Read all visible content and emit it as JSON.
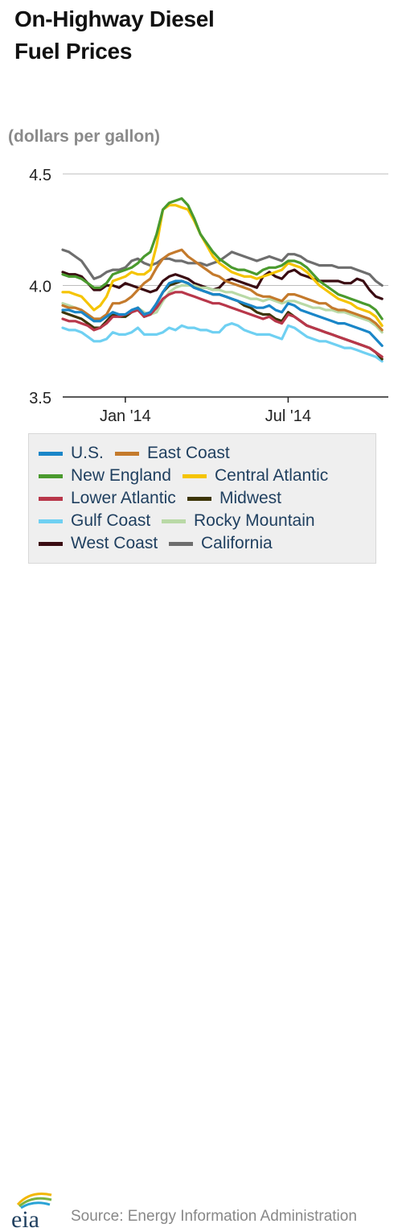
{
  "title_line1": "On-Highway Diesel",
  "title_line2": "Fuel Prices",
  "units": "(dollars per gallon)",
  "source": "Source: Energy Information Administration",
  "logo_text": "eia",
  "chart_data": {
    "type": "line",
    "title": "On-Highway Diesel Fuel Prices",
    "ylabel": "(dollars per gallon)",
    "ylim": [
      3.5,
      4.5
    ],
    "yticks": [
      "3.5",
      "4.0",
      "4.5"
    ],
    "xticks": [
      {
        "label": "Jan '14",
        "week": 10
      },
      {
        "label": "Jul '14",
        "week": 36
      }
    ],
    "grid": "horizontal",
    "legend_placement": "bottom",
    "x_weeks": [
      0,
      1,
      2,
      3,
      4,
      5,
      6,
      7,
      8,
      9,
      10,
      11,
      12,
      13,
      14,
      15,
      16,
      17,
      18,
      19,
      20,
      21,
      22,
      23,
      24,
      25,
      26,
      27,
      28,
      29,
      30,
      31,
      32,
      33,
      34,
      35,
      36,
      37,
      38,
      39,
      40,
      41,
      42,
      43,
      44,
      45,
      46,
      47,
      48,
      49,
      50,
      51
    ],
    "series": [
      {
        "name": "U.S.",
        "color": "#1a86c8",
        "values": [
          3.89,
          3.89,
          3.88,
          3.88,
          3.86,
          3.84,
          3.84,
          3.86,
          3.88,
          3.87,
          3.87,
          3.89,
          3.9,
          3.87,
          3.88,
          3.92,
          3.97,
          4.01,
          4.02,
          4.02,
          4.01,
          3.99,
          3.98,
          3.97,
          3.96,
          3.96,
          3.95,
          3.94,
          3.93,
          3.92,
          3.91,
          3.9,
          3.9,
          3.91,
          3.89,
          3.88,
          3.92,
          3.91,
          3.89,
          3.88,
          3.87,
          3.86,
          3.85,
          3.84,
          3.83,
          3.83,
          3.82,
          3.81,
          3.8,
          3.79,
          3.76,
          3.73
        ]
      },
      {
        "name": "East Coast",
        "color": "#c47a2c",
        "values": [
          3.91,
          3.9,
          3.9,
          3.89,
          3.87,
          3.85,
          3.85,
          3.87,
          3.92,
          3.92,
          3.93,
          3.95,
          3.98,
          4.01,
          4.03,
          4.08,
          4.12,
          4.14,
          4.15,
          4.16,
          4.13,
          4.11,
          4.09,
          4.07,
          4.05,
          4.04,
          4.02,
          4.01,
          4.0,
          3.99,
          3.98,
          3.96,
          3.95,
          3.95,
          3.94,
          3.93,
          3.96,
          3.96,
          3.95,
          3.94,
          3.93,
          3.92,
          3.92,
          3.9,
          3.89,
          3.89,
          3.88,
          3.87,
          3.86,
          3.85,
          3.83,
          3.8
        ]
      },
      {
        "name": "New England",
        "color": "#4a9a2e",
        "values": [
          4.05,
          4.04,
          4.04,
          4.03,
          4.01,
          3.99,
          3.99,
          4.01,
          4.05,
          4.06,
          4.07,
          4.08,
          4.1,
          4.13,
          4.15,
          4.23,
          4.34,
          4.37,
          4.38,
          4.39,
          4.36,
          4.3,
          4.23,
          4.19,
          4.15,
          4.12,
          4.1,
          4.08,
          4.07,
          4.07,
          4.06,
          4.05,
          4.07,
          4.08,
          4.08,
          4.09,
          4.11,
          4.11,
          4.1,
          4.08,
          4.05,
          4.02,
          4.0,
          3.98,
          3.96,
          3.95,
          3.94,
          3.93,
          3.92,
          3.91,
          3.89,
          3.85
        ]
      },
      {
        "name": "Central Atlantic",
        "color": "#f5c400",
        "values": [
          3.97,
          3.97,
          3.96,
          3.95,
          3.92,
          3.89,
          3.91,
          3.95,
          4.02,
          4.03,
          4.04,
          4.06,
          4.05,
          4.05,
          4.07,
          4.18,
          4.34,
          4.36,
          4.36,
          4.35,
          4.34,
          4.29,
          4.23,
          4.18,
          4.13,
          4.1,
          4.08,
          4.06,
          4.05,
          4.04,
          4.04,
          4.03,
          4.04,
          4.05,
          4.06,
          4.07,
          4.1,
          4.09,
          4.08,
          4.06,
          4.03,
          4.0,
          3.98,
          3.96,
          3.94,
          3.93,
          3.92,
          3.9,
          3.89,
          3.88,
          3.86,
          3.82
        ]
      },
      {
        "name": "Lower Atlantic",
        "color": "#b8374a",
        "values": [
          3.85,
          3.84,
          3.84,
          3.83,
          3.82,
          3.8,
          3.81,
          3.83,
          3.86,
          3.86,
          3.87,
          3.88,
          3.89,
          3.86,
          3.87,
          3.9,
          3.94,
          3.96,
          3.97,
          3.97,
          3.96,
          3.95,
          3.94,
          3.93,
          3.92,
          3.92,
          3.91,
          3.9,
          3.89,
          3.88,
          3.87,
          3.86,
          3.85,
          3.86,
          3.84,
          3.83,
          3.87,
          3.86,
          3.84,
          3.82,
          3.81,
          3.8,
          3.79,
          3.78,
          3.77,
          3.76,
          3.75,
          3.74,
          3.73,
          3.72,
          3.7,
          3.68
        ]
      },
      {
        "name": "Midwest",
        "color": "#3d3508",
        "values": [
          3.88,
          3.87,
          3.86,
          3.85,
          3.83,
          3.81,
          3.81,
          3.84,
          3.87,
          3.86,
          3.86,
          3.88,
          3.9,
          3.86,
          3.87,
          3.92,
          3.97,
          4.0,
          4.01,
          4.02,
          4.01,
          3.99,
          3.98,
          3.97,
          3.96,
          3.96,
          3.95,
          3.94,
          3.93,
          3.91,
          3.9,
          3.88,
          3.87,
          3.87,
          3.85,
          3.84,
          3.88,
          3.86,
          3.84,
          3.82,
          3.81,
          3.8,
          3.79,
          3.78,
          3.77,
          3.76,
          3.75,
          3.74,
          3.73,
          3.72,
          3.7,
          3.67
        ]
      },
      {
        "name": "Gulf Coast",
        "color": "#6fd0f2",
        "values": [
          3.81,
          3.8,
          3.8,
          3.79,
          3.77,
          3.75,
          3.75,
          3.76,
          3.79,
          3.78,
          3.78,
          3.79,
          3.81,
          3.78,
          3.78,
          3.78,
          3.79,
          3.81,
          3.8,
          3.82,
          3.81,
          3.81,
          3.8,
          3.8,
          3.79,
          3.79,
          3.82,
          3.83,
          3.82,
          3.8,
          3.79,
          3.78,
          3.78,
          3.78,
          3.77,
          3.76,
          3.82,
          3.81,
          3.79,
          3.77,
          3.76,
          3.75,
          3.75,
          3.74,
          3.73,
          3.72,
          3.72,
          3.71,
          3.7,
          3.69,
          3.68,
          3.66
        ]
      },
      {
        "name": "Rocky Mountain",
        "color": "#b9d9a6",
        "values": [
          3.92,
          3.91,
          3.9,
          3.89,
          3.87,
          3.85,
          3.85,
          3.86,
          3.88,
          3.87,
          3.86,
          3.88,
          3.9,
          3.88,
          3.87,
          3.88,
          3.93,
          3.97,
          3.99,
          4.0,
          4.0,
          4.0,
          3.99,
          3.99,
          3.98,
          3.98,
          3.97,
          3.97,
          3.96,
          3.95,
          3.94,
          3.94,
          3.93,
          3.94,
          3.93,
          3.92,
          3.93,
          3.93,
          3.92,
          3.91,
          3.9,
          3.9,
          3.89,
          3.89,
          3.88,
          3.88,
          3.87,
          3.86,
          3.85,
          3.84,
          3.82,
          3.79
        ]
      },
      {
        "name": "West Coast",
        "color": "#3a0c12",
        "values": [
          4.06,
          4.05,
          4.05,
          4.04,
          4.01,
          3.98,
          3.98,
          4.0,
          4.0,
          3.99,
          4.01,
          4.0,
          3.99,
          3.98,
          3.97,
          3.98,
          4.02,
          4.04,
          4.05,
          4.04,
          4.03,
          4.01,
          4.0,
          3.99,
          3.98,
          3.99,
          4.02,
          4.03,
          4.02,
          4.01,
          4.0,
          3.99,
          4.04,
          4.06,
          4.04,
          4.03,
          4.06,
          4.07,
          4.05,
          4.04,
          4.03,
          4.02,
          4.02,
          4.02,
          4.02,
          4.01,
          4.01,
          4.03,
          4.02,
          3.98,
          3.95,
          3.94
        ]
      },
      {
        "name": "California",
        "color": "#6e6e6e",
        "values": [
          4.16,
          4.15,
          4.13,
          4.11,
          4.07,
          4.03,
          4.04,
          4.06,
          4.07,
          4.07,
          4.08,
          4.11,
          4.12,
          4.1,
          4.09,
          4.1,
          4.12,
          4.12,
          4.11,
          4.11,
          4.1,
          4.1,
          4.1,
          4.09,
          4.1,
          4.11,
          4.13,
          4.15,
          4.14,
          4.13,
          4.12,
          4.11,
          4.12,
          4.13,
          4.12,
          4.11,
          4.14,
          4.14,
          4.13,
          4.11,
          4.1,
          4.09,
          4.09,
          4.09,
          4.08,
          4.08,
          4.08,
          4.07,
          4.06,
          4.05,
          4.02,
          4.0
        ]
      }
    ]
  }
}
